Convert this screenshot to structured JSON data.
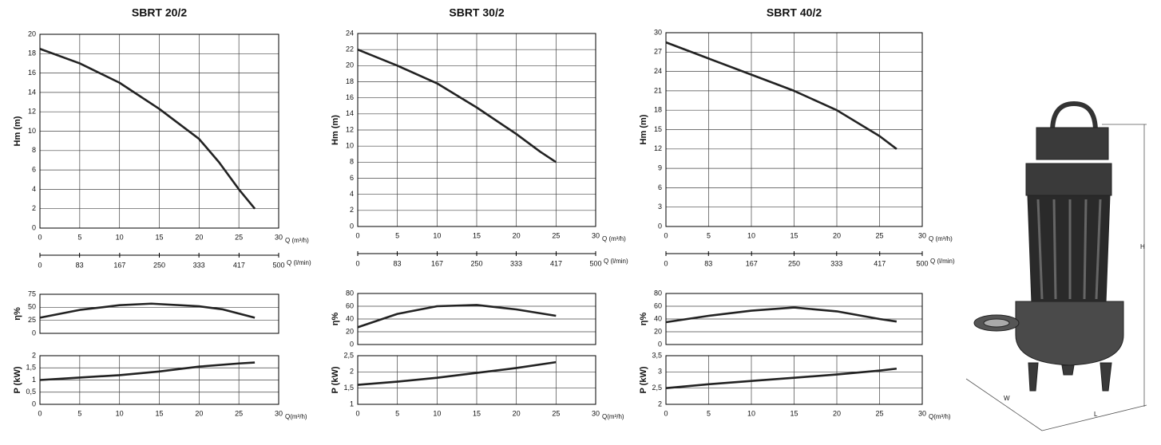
{
  "chart_data": [
    {
      "type": "line",
      "title": "SBRT 20/2",
      "ylabel": "Hm   (m)",
      "xlabel": "Q (m³/h)",
      "x": [
        0,
        5,
        10,
        15,
        20,
        22.5,
        25,
        27
      ],
      "values": [
        18.5,
        17,
        15,
        12.3,
        9.2,
        6.8,
        4,
        2
      ],
      "color": "#222222",
      "xlim": [
        0,
        30
      ],
      "xticks": [
        0,
        5,
        10,
        15,
        20,
        25,
        30
      ],
      "ylim": [
        0,
        20
      ],
      "yticks": [
        0,
        2,
        4,
        6,
        8,
        10,
        12,
        14,
        16,
        18,
        20
      ],
      "grid": true,
      "x2label": "Q (l/min)",
      "x2lim": [
        0,
        500
      ],
      "x2ticks": [
        0,
        83,
        167,
        250,
        333,
        417,
        500
      ]
    },
    {
      "type": "line",
      "ylabel": "η%",
      "x": [
        0,
        5,
        10,
        14,
        20,
        23,
        27
      ],
      "values": [
        30,
        45,
        54,
        57,
        52,
        46,
        30
      ],
      "color": "#222222",
      "xlim": [
        0,
        30
      ],
      "ylim": [
        0,
        75
      ],
      "yticks": [
        0,
        25,
        50,
        75
      ],
      "grid": true
    },
    {
      "type": "line",
      "ylabel": "P   (kW)",
      "xlabel": "Q(m³/h)",
      "x": [
        0,
        5,
        10,
        15,
        20,
        25,
        27
      ],
      "values": [
        1,
        1.1,
        1.2,
        1.35,
        1.55,
        1.68,
        1.72
      ],
      "color": "#222222",
      "xlim": [
        0,
        30
      ],
      "xticks": [
        0,
        5,
        10,
        15,
        20,
        25,
        30
      ],
      "ylim": [
        0,
        2
      ],
      "yticks": [
        0,
        {
          "value": 0.5,
          "label": "0,5"
        },
        1,
        {
          "value": 1.5,
          "label": "1,5"
        },
        2
      ],
      "grid": true
    },
    {
      "type": "line",
      "title": "SBRT 30/2",
      "ylabel": "Hm   (m)",
      "xlabel": "Q (m³/h)",
      "x": [
        0,
        5,
        10,
        15,
        20,
        23,
        25
      ],
      "values": [
        22,
        20,
        17.8,
        14.8,
        11.5,
        9.3,
        8
      ],
      "color": "#222222",
      "xlim": [
        0,
        30
      ],
      "xticks": [
        0,
        5,
        10,
        15,
        20,
        25,
        30
      ],
      "ylim": [
        0,
        24
      ],
      "yticks": [
        0,
        2,
        4,
        6,
        8,
        10,
        12,
        14,
        16,
        18,
        20,
        22,
        24
      ],
      "grid": true,
      "x2label": "Q (l/min)",
      "x2lim": [
        0,
        500
      ],
      "x2ticks": [
        0,
        83,
        167,
        250,
        333,
        417,
        500
      ]
    },
    {
      "type": "line",
      "ylabel": "η%",
      "x": [
        0,
        5,
        10,
        15,
        20,
        25
      ],
      "values": [
        27,
        48,
        60,
        62,
        55,
        45
      ],
      "color": "#222222",
      "xlim": [
        0,
        30
      ],
      "ylim": [
        0,
        80
      ],
      "yticks": [
        0,
        20,
        40,
        60,
        80
      ],
      "grid": true
    },
    {
      "type": "line",
      "ylabel": "P   (kW)",
      "xlabel": "Q(m³/h)",
      "x": [
        0,
        5,
        10,
        15,
        20,
        25
      ],
      "values": [
        1.6,
        1.7,
        1.82,
        1.97,
        2.12,
        2.3
      ],
      "color": "#222222",
      "xlim": [
        0,
        30
      ],
      "xticks": [
        0,
        5,
        10,
        15,
        20,
        25,
        30
      ],
      "ylim": [
        1,
        2.5
      ],
      "yticks": [
        1,
        {
          "value": 1.5,
          "label": "1,5"
        },
        2,
        {
          "value": 2.5,
          "label": "2,5"
        }
      ],
      "grid": true
    },
    {
      "type": "line",
      "title": "SBRT 40/2",
      "ylabel": "Hm   (m)",
      "xlabel": "Q (m³/h)",
      "x": [
        0,
        5,
        10,
        15,
        20,
        25,
        27
      ],
      "values": [
        28.5,
        26,
        23.5,
        21,
        18,
        14,
        12
      ],
      "color": "#222222",
      "xlim": [
        0,
        30
      ],
      "xticks": [
        0,
        5,
        10,
        15,
        20,
        25,
        30
      ],
      "ylim": [
        0,
        30
      ],
      "yticks": [
        0,
        3,
        6,
        9,
        12,
        15,
        18,
        21,
        24,
        27,
        30
      ],
      "grid": true,
      "x2label": "Q (l/min)",
      "x2lim": [
        0,
        500
      ],
      "x2ticks": [
        0,
        83,
        167,
        250,
        333,
        417,
        500
      ]
    },
    {
      "type": "line",
      "ylabel": "η%",
      "x": [
        0,
        5,
        10,
        15,
        20,
        25,
        27
      ],
      "values": [
        35,
        45,
        53,
        58,
        52,
        40,
        36
      ],
      "color": "#222222",
      "xlim": [
        0,
        30
      ],
      "ylim": [
        0,
        80
      ],
      "yticks": [
        0,
        20,
        40,
        60,
        80
      ],
      "grid": true
    },
    {
      "type": "line",
      "ylabel": "P   (kW)",
      "xlabel": "Q(m³/h)",
      "x": [
        0,
        5,
        10,
        15,
        20,
        25,
        27
      ],
      "values": [
        2.5,
        2.62,
        2.72,
        2.82,
        2.92,
        3.04,
        3.1
      ],
      "color": "#222222",
      "xlim": [
        0,
        30
      ],
      "xticks": [
        0,
        5,
        10,
        15,
        20,
        25,
        30
      ],
      "ylim": [
        2,
        3.5
      ],
      "yticks": [
        2,
        {
          "value": 2.5,
          "label": "2,5"
        },
        3,
        {
          "value": 3.5,
          "label": "3,5"
        }
      ],
      "grid": true
    }
  ],
  "drawing": {
    "dimensions": [
      "H",
      "W",
      "L"
    ]
  }
}
